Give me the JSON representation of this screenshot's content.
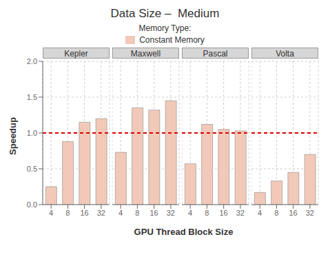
{
  "chart_data": {
    "type": "bar",
    "title": "Data Size –  Medium",
    "xlabel": "GPU Thread Block Size",
    "ylabel": "Speedup",
    "legend_title": "Memory Type:",
    "legend": "top",
    "grid": true,
    "categories": [
      "4",
      "8",
      "16",
      "32"
    ],
    "ylim": [
      0.0,
      2.0
    ],
    "yticks": [
      {
        "value": 0,
        "label": "0.0"
      },
      0.5,
      {
        "value": 1,
        "label": "1.0"
      },
      1.5,
      {
        "value": 2,
        "label": "2.0"
      }
    ],
    "ref_line": {
      "y": 1.0,
      "color": "#dd0000"
    },
    "panels": [
      {
        "title": "Kepler",
        "series": [
          {
            "name": "Constant Memory",
            "color": "#f2c9b8",
            "values": [
              0.25,
              0.88,
              1.15,
              1.2
            ]
          }
        ]
      },
      {
        "title": "Maxwell",
        "series": [
          {
            "name": "Constant Memory",
            "color": "#f2c9b8",
            "values": [
              0.73,
              1.35,
              1.32,
              1.45
            ]
          }
        ]
      },
      {
        "title": "Pascal",
        "series": [
          {
            "name": "Constant Memory",
            "color": "#f2c9b8",
            "values": [
              0.57,
              1.12,
              1.05,
              1.03
            ]
          }
        ]
      },
      {
        "title": "Volta",
        "series": [
          {
            "name": "Constant Memory",
            "color": "#f2c9b8",
            "values": [
              0.17,
              0.33,
              0.45,
              0.7
            ]
          }
        ]
      }
    ]
  }
}
